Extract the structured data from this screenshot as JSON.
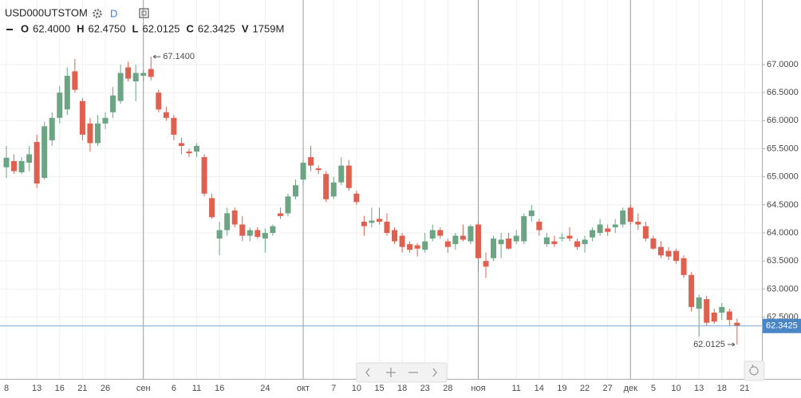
{
  "chart_data": {
    "type": "candlestick",
    "title": "USD000UTSTOM",
    "interval": "D",
    "legend": [
      {
        "key": "O",
        "text": "62.4000"
      },
      {
        "key": "H",
        "text": "62.4750"
      },
      {
        "key": "L",
        "text": "62.0125"
      },
      {
        "key": "C",
        "text": "62.3425"
      },
      {
        "key": "V",
        "text": "1759M"
      }
    ],
    "x": [
      "8",
      null,
      null,
      null,
      "13",
      null,
      null,
      "16",
      null,
      null,
      "21",
      null,
      null,
      "26",
      null,
      null,
      null,
      null,
      "сен",
      null,
      null,
      null,
      "6",
      null,
      null,
      "11",
      null,
      null,
      "16",
      null,
      null,
      null,
      null,
      null,
      "24",
      null,
      null,
      null,
      null,
      "окт",
      null,
      null,
      null,
      "7",
      null,
      null,
      "10",
      null,
      null,
      "15",
      null,
      null,
      "18",
      null,
      null,
      "23",
      null,
      null,
      "28",
      null,
      null,
      null,
      "ноя",
      null,
      null,
      null,
      null,
      "11",
      null,
      null,
      "14",
      null,
      null,
      "19",
      null,
      null,
      "22",
      null,
      null,
      "27",
      null,
      null,
      "дек",
      null,
      null,
      "5",
      null,
      null,
      "10",
      null,
      null,
      "13",
      null,
      null,
      "18",
      null,
      null,
      "21"
    ],
    "open": [
      65.17,
      65.28,
      65.08,
      65.25,
      65.62,
      64.98,
      65.65,
      66.05,
      66.2,
      66.88,
      66.35,
      65.95,
      65.6,
      65.95,
      66.15,
      66.35,
      66.95,
      66.7,
      66.8,
      66.92,
      66.5,
      66.15,
      66.05,
      65.6,
      65.45,
      65.45,
      65.35,
      64.62,
      63.9,
      64.05,
      64.4,
      64.15,
      63.95,
      64.05,
      63.9,
      64.0,
      64.35,
      64.35,
      64.65,
      64.95,
      65.35,
      65.15,
      65.05,
      64.65,
      64.9,
      65.2,
      64.7,
      64.2,
      64.18,
      64.25,
      64.2,
      64.05,
      63.95,
      63.8,
      63.78,
      63.7,
      63.9,
      64.05,
      63.85,
      63.8,
      63.95,
      63.85,
      64.15,
      63.5,
      63.55,
      63.8,
      63.9,
      63.85,
      63.85,
      64.3,
      64.2,
      63.8,
      63.85,
      63.9,
      63.95,
      63.85,
      63.8,
      63.92,
      64.0,
      64.08,
      64.1,
      64.15,
      64.45,
      64.2,
      64.12,
      63.9,
      63.75,
      63.68,
      63.68,
      63.55,
      63.25,
      62.65,
      62.82,
      62.58,
      62.58,
      62.6,
      62.4,
      null
    ],
    "high": [
      65.55,
      65.4,
      65.35,
      65.55,
      65.75,
      65.98,
      66.15,
      66.62,
      66.95,
      67.1,
      66.4,
      66.05,
      66.1,
      66.15,
      66.6,
      67.0,
      67.05,
      67.0,
      66.9,
      67.14,
      66.55,
      66.25,
      66.1,
      65.7,
      65.5,
      65.6,
      65.4,
      64.7,
      64.2,
      64.45,
      64.45,
      64.3,
      64.1,
      64.1,
      64.08,
      64.15,
      64.45,
      64.7,
      64.95,
      65.3,
      65.55,
      65.2,
      65.1,
      65.0,
      65.35,
      65.3,
      64.75,
      64.3,
      64.45,
      64.45,
      64.35,
      64.1,
      64.0,
      63.85,
      63.82,
      64.0,
      64.15,
      64.1,
      63.9,
      64.0,
      64.15,
      64.15,
      64.2,
      63.65,
      63.95,
      64.0,
      64.0,
      64.05,
      64.35,
      64.5,
      64.25,
      64.0,
      63.95,
      64.0,
      64.1,
      63.9,
      63.95,
      64.1,
      64.25,
      64.15,
      64.25,
      64.45,
      64.5,
      64.35,
      64.2,
      63.95,
      63.85,
      63.75,
      63.72,
      63.6,
      63.3,
      62.9,
      62.88,
      62.65,
      62.75,
      62.65,
      62.475,
      null
    ],
    "low": [
      64.98,
      65.05,
      65.05,
      65.1,
      64.8,
      64.95,
      65.55,
      65.95,
      66.1,
      66.5,
      65.65,
      65.45,
      65.55,
      65.85,
      66.05,
      66.3,
      66.7,
      66.35,
      66.7,
      66.72,
      66.15,
      66.0,
      65.65,
      65.4,
      65.35,
      65.35,
      64.65,
      64.25,
      63.6,
      63.95,
      64.1,
      63.85,
      63.85,
      63.9,
      63.65,
      63.95,
      64.25,
      64.3,
      64.6,
      64.85,
      65.1,
      65.05,
      64.55,
      64.6,
      64.85,
      64.75,
      64.5,
      63.95,
      64.1,
      64.15,
      63.95,
      63.8,
      63.65,
      63.65,
      63.58,
      63.65,
      63.85,
      63.9,
      63.65,
      63.7,
      63.85,
      63.8,
      63.3,
      63.2,
      63.5,
      63.55,
      63.7,
      63.8,
      63.8,
      64.2,
      63.95,
      63.75,
      63.75,
      63.85,
      63.85,
      63.7,
      63.65,
      63.85,
      63.95,
      63.95,
      64.0,
      64.1,
      64.15,
      64.05,
      63.85,
      63.7,
      63.55,
      63.52,
      63.45,
      63.2,
      62.6,
      62.15,
      62.35,
      62.38,
      62.45,
      62.35,
      62.0125,
      null
    ],
    "close": [
      65.34,
      65.1,
      65.28,
      65.4,
      64.88,
      65.9,
      66.05,
      66.5,
      66.8,
      66.55,
      65.75,
      65.6,
      65.95,
      66.05,
      66.45,
      66.85,
      66.75,
      66.85,
      66.85,
      66.78,
      66.2,
      66.05,
      65.75,
      65.55,
      65.42,
      65.55,
      64.7,
      64.28,
      64.05,
      64.35,
      64.15,
      63.95,
      64.05,
      63.93,
      64.0,
      64.12,
      64.3,
      64.65,
      64.85,
      65.25,
      65.2,
      65.12,
      64.6,
      64.9,
      65.2,
      64.8,
      64.55,
      64.12,
      64.22,
      64.2,
      64.0,
      63.85,
      63.75,
      63.7,
      63.72,
      63.85,
      64.05,
      63.95,
      63.75,
      63.95,
      63.88,
      64.12,
      63.55,
      63.4,
      63.9,
      63.88,
      63.72,
      63.95,
      64.3,
      64.4,
      64.05,
      63.92,
      63.8,
      63.92,
      63.9,
      63.75,
      63.88,
      64.05,
      64.15,
      64.02,
      64.15,
      64.4,
      64.2,
      64.15,
      63.9,
      63.72,
      63.6,
      63.58,
      63.5,
      63.25,
      62.68,
      62.85,
      62.4,
      62.42,
      62.68,
      62.45,
      62.3425,
      null
    ],
    "up_color": "#6ba583",
    "down_color": "#e0604f",
    "ylim": [
      61.4,
      68.15
    ],
    "yticks": [
      {
        "value": 62.5,
        "label": "62.5000"
      },
      {
        "value": 63,
        "label": "63.0000"
      },
      {
        "value": 63.5,
        "label": "63.5000"
      },
      {
        "value": 64,
        "label": "64.0000"
      },
      {
        "value": 64.5,
        "label": "64.5000"
      },
      {
        "value": 65,
        "label": "65.0000"
      },
      {
        "value": 65.5,
        "label": "65.5000"
      },
      {
        "value": 66,
        "label": "66.0000"
      },
      {
        "value": 66.5,
        "label": "66.5000"
      },
      {
        "value": 67,
        "label": "67.0000"
      }
    ],
    "grid": true,
    "high_marker": {
      "value": 67.14,
      "label": "67.1400"
    },
    "low_marker": {
      "value": 62.0125,
      "label": "62.0125"
    },
    "last_price": {
      "value": 62.3425,
      "label": "62.3425"
    }
  }
}
